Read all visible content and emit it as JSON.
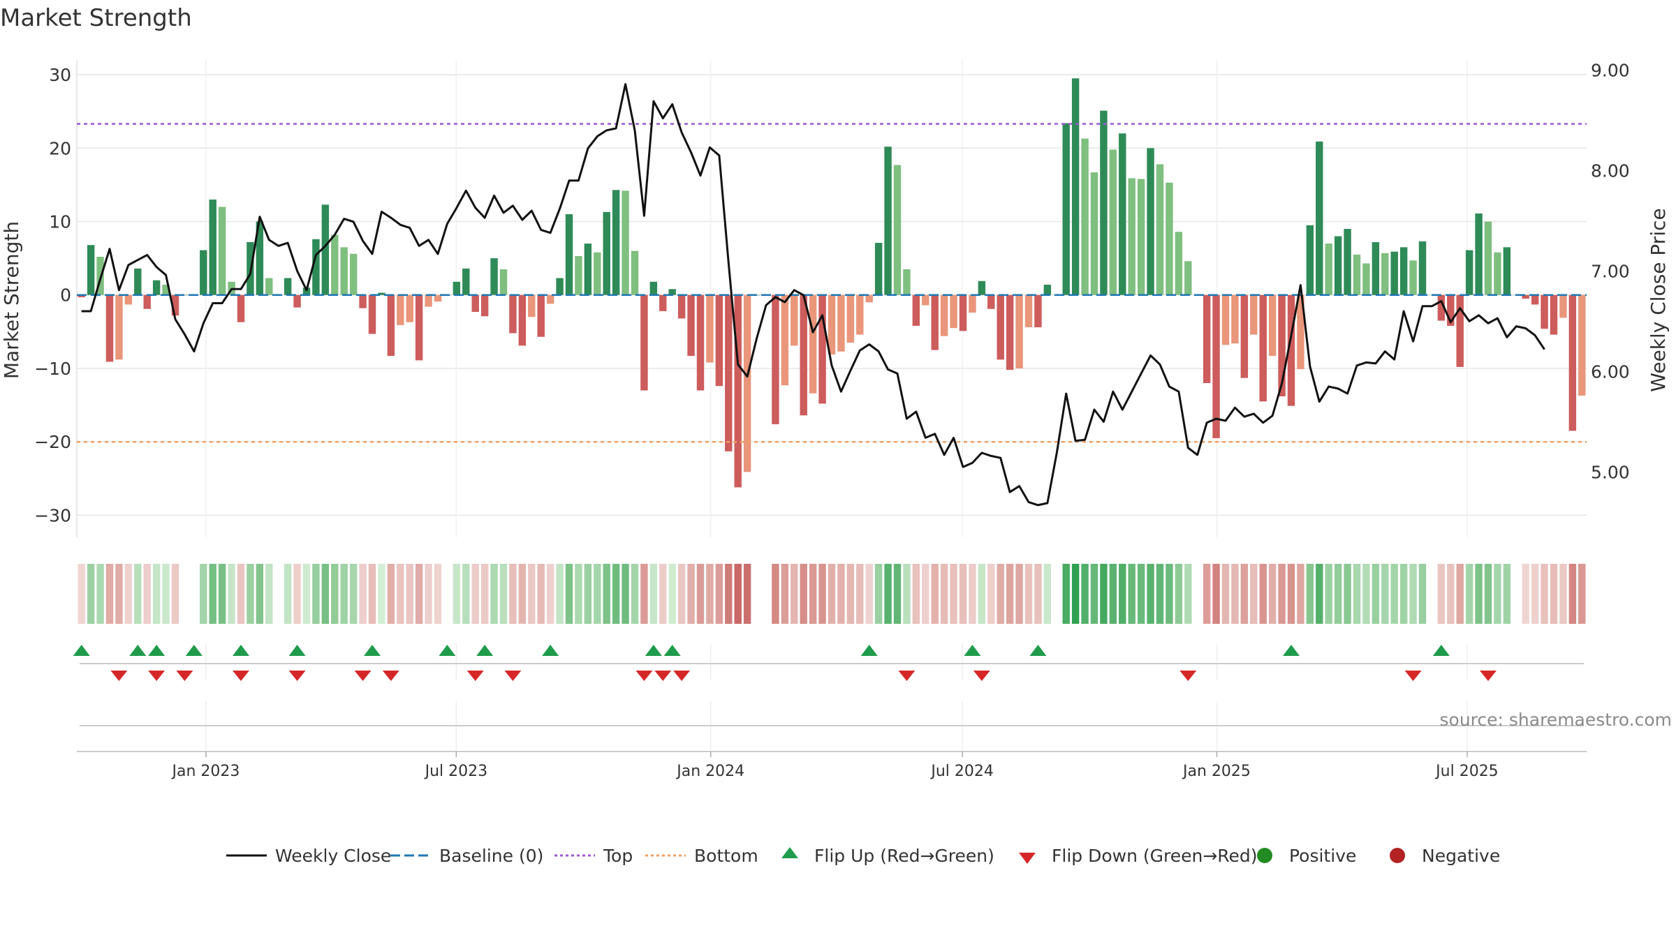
{
  "chart_data": {
    "type": "bar",
    "title": "Market Strength",
    "ylabel": "Market Strength",
    "ylabel_right": "Weekly Close Price",
    "source": "source: sharemaestro.com",
    "ylim": [
      -33,
      32
    ],
    "ylim_right": [
      4.35,
      9.1
    ],
    "yticks": [
      30,
      20,
      10,
      0,
      -10,
      -20,
      -30
    ],
    "ytick_labels": [
      "30",
      "20",
      "10",
      "0",
      "−10",
      "−20",
      "−30"
    ],
    "yticks_right": [
      9.0,
      8.0,
      7.0,
      6.0,
      5.0
    ],
    "ytick_labels_right": [
      "9.00",
      "8.00",
      "7.00",
      "6.00",
      "5.00"
    ],
    "x_start": "2022-10-03",
    "x_end": "2025-09-22",
    "xticks": [
      "2023-01-01",
      "2023-07-01",
      "2024-01-01",
      "2024-07-01",
      "2025-01-01",
      "2025-07-01"
    ],
    "xtick_labels": [
      "Jan 2023",
      "Jul 2023",
      "Jan 2024",
      "Jul 2024",
      "Jan 2025",
      "Jul 2025"
    ],
    "top_level": 23.3,
    "bottom_level": -20,
    "grid": true,
    "legend_position": "bottom-center",
    "strength": [
      -0.3,
      6.8,
      5.2,
      -9.1,
      -8.8,
      -1.3,
      3.6,
      -1.9,
      2.0,
      1.4,
      -2.8,
      0,
      0,
      6.1,
      13.0,
      12.0,
      1.8,
      -3.7,
      7.2,
      10.0,
      2.3,
      0,
      2.3,
      -1.7,
      1.0,
      7.6,
      12.3,
      8.2,
      6.5,
      5.6,
      -1.8,
      -5.3,
      0.3,
      -8.3,
      -4.1,
      -3.7,
      -8.9,
      -1.6,
      -0.9,
      0,
      1.8,
      3.6,
      -2.3,
      -2.9,
      5.0,
      3.5,
      -5.2,
      -6.9,
      -3.0,
      -5.7,
      -1.2,
      2.3,
      11.0,
      5.3,
      7.0,
      5.8,
      11.3,
      14.3,
      14.2,
      6.0,
      -13.0,
      1.8,
      -2.2,
      0.8,
      -3.2,
      -8.3,
      -13.0,
      -9.2,
      -12.4,
      -21.3,
      -26.2,
      -24.1,
      0,
      0,
      -17.6,
      -12.3,
      -6.9,
      -16.4,
      -13.4,
      -14.8,
      -8.1,
      -7.7,
      -6.5,
      -5.4,
      -1.0,
      7.1,
      20.2,
      17.7,
      3.5,
      -4.2,
      -1.4,
      -7.5,
      -5.6,
      -4.5,
      -4.9,
      -2.4,
      1.9,
      -1.9,
      -8.8,
      -10.2,
      -10.0,
      -4.4,
      -4.4,
      1.4,
      0,
      23.4,
      29.5,
      21.3,
      16.7,
      25.1,
      19.8,
      22.0,
      15.9,
      15.8,
      20.0,
      17.8,
      15.3,
      8.6,
      4.6,
      0,
      -12.0,
      -19.5,
      -6.8,
      -6.6,
      -11.3,
      -5.4,
      -14.5,
      -8.3,
      -13.8,
      -15.1,
      -10.1,
      9.5,
      20.9,
      7.0,
      8.0,
      9.0,
      5.5,
      4.3,
      7.2,
      5.7,
      5.9,
      6.5,
      4.7,
      7.3,
      0,
      -3.5,
      -4.2,
      -9.8,
      6.1,
      11.1,
      10.0,
      5.8,
      6.5,
      0,
      -0.5,
      -1.3,
      -4.6,
      -5.4,
      -3.1,
      -18.5,
      -13.7
    ],
    "weekly_close": [
      6.6,
      6.6,
      6.92,
      7.22,
      6.81,
      7.06,
      7.11,
      7.16,
      7.04,
      6.96,
      6.52,
      6.37,
      6.2,
      6.48,
      6.68,
      6.68,
      6.82,
      6.82,
      6.97,
      7.54,
      7.31,
      7.25,
      7.28,
      7.0,
      6.81,
      7.16,
      7.25,
      7.36,
      7.52,
      7.49,
      7.3,
      7.17,
      7.59,
      7.53,
      7.46,
      7.43,
      7.25,
      7.31,
      7.17,
      7.47,
      7.63,
      7.8,
      7.63,
      7.53,
      7.75,
      7.58,
      7.65,
      7.51,
      7.6,
      7.41,
      7.38,
      7.62,
      7.9,
      7.9,
      8.22,
      8.34,
      8.4,
      8.42,
      8.86,
      8.4,
      7.55,
      8.69,
      8.52,
      8.66,
      8.38,
      8.18,
      7.95,
      8.23,
      8.15,
      7.08,
      6.07,
      5.95,
      6.33,
      6.66,
      6.74,
      6.69,
      6.81,
      6.76,
      6.39,
      6.56,
      6.06,
      5.8,
      6.01,
      6.21,
      6.27,
      6.2,
      6.02,
      5.98,
      5.53,
      5.6,
      5.34,
      5.38,
      5.17,
      5.34,
      5.05,
      5.09,
      5.19,
      5.16,
      5.14,
      4.8,
      4.86,
      4.7,
      4.67,
      4.69,
      5.19,
      5.78,
      5.31,
      5.32,
      5.62,
      5.5,
      5.8,
      5.62,
      5.8,
      5.98,
      6.16,
      6.07,
      5.85,
      5.8,
      5.24,
      5.17,
      5.49,
      5.53,
      5.51,
      5.64,
      5.55,
      5.58,
      5.49,
      5.56,
      5.88,
      6.36,
      6.86,
      6.05,
      5.7,
      5.85,
      5.83,
      5.78,
      6.06,
      6.09,
      6.08,
      6.2,
      6.12,
      6.6,
      6.3,
      6.65,
      6.65,
      6.7,
      6.49,
      6.63,
      6.5,
      6.56,
      6.48,
      6.53,
      6.34,
      6.45,
      6.43,
      6.36,
      6.22
    ],
    "flip_up_weeks": [
      0,
      6,
      8,
      12,
      17,
      23,
      31,
      39,
      43,
      50,
      61,
      63,
      84,
      95,
      102,
      129,
      145
    ],
    "flip_down_weeks": [
      4,
      8,
      11,
      17,
      23,
      30,
      33,
      42,
      46,
      60,
      62,
      64,
      88,
      96,
      118,
      142,
      150
    ],
    "colors": {
      "pos_strong": "#2e8b57",
      "pos_light": "#7fbf7f",
      "neg_strong": "#cd5c5c",
      "neg_light": "#e9967a",
      "top": "#9b59d6",
      "bottom": "#f0a060",
      "baseline": "#1f77b4",
      "flip_up": "#1f9b4b",
      "flip_down": "#d62728",
      "positive": "#228b22",
      "negative": "#b22222"
    },
    "legend": [
      {
        "label": "Weekly Close",
        "kind": "line"
      },
      {
        "label": "Baseline (0)",
        "kind": "dash"
      },
      {
        "label": "Top",
        "kind": "dot-purple"
      },
      {
        "label": "Bottom",
        "kind": "dot-orange"
      },
      {
        "label": "Flip Up (Red→Green)",
        "kind": "tri-up"
      },
      {
        "label": "Flip Down (Green→Red)",
        "kind": "tri-down"
      },
      {
        "label": "Positive",
        "kind": "circle-pos"
      },
      {
        "label": "Negative",
        "kind": "circle-neg"
      }
    ]
  }
}
